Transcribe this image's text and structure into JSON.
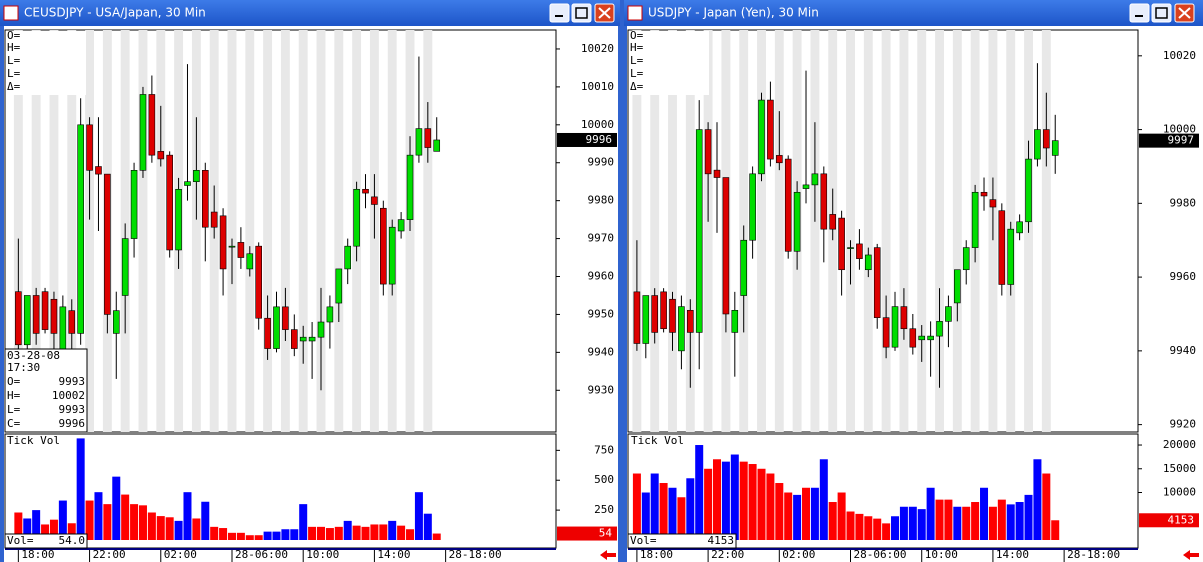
{
  "windows": [
    {
      "title": "CEUSDJPY - USA/Japan, 30 Min",
      "ohlc_labels": [
        "O=",
        "H=",
        "L=",
        "L=",
        "Δ="
      ],
      "cursor": {
        "date": "03-28-08",
        "time": "17:30",
        "labels": [
          "O=",
          "H=",
          "L=",
          "C="
        ],
        "values": [
          9993,
          10002,
          9993,
          9996
        ]
      },
      "volume_title": "Tick Vol",
      "volume_readout": {
        "label": "Vol=",
        "value": "54.0"
      }
    },
    {
      "title": "USDJPY - Japan (Yen), 30 Min",
      "ohlc_labels": [
        "O=",
        "H=",
        "L=",
        "L=",
        "Δ="
      ],
      "volume_title": "Tick Vol",
      "volume_readout": {
        "label": "Vol=",
        "value": 4153
      }
    }
  ],
  "chart_data": [
    {
      "type": "candlestick",
      "up_color": "#00dd00",
      "down_color": "#dd0000",
      "open": [
        9956,
        9942,
        9955,
        9956,
        9954,
        9940,
        9951,
        9945,
        10000,
        9989,
        9987,
        9945,
        9955,
        9970,
        9988,
        10008,
        9993,
        9992,
        9967,
        9984,
        9985,
        9988,
        9977,
        9976,
        9968,
        9969,
        9962,
        9968,
        9949,
        9941,
        9952,
        9946,
        9943,
        9943,
        9944,
        9948,
        9953,
        9962,
        9968,
        9983,
        9981,
        9978,
        9958,
        9972,
        9975,
        9992,
        9999,
        9993
      ],
      "high": [
        9970,
        9955,
        9957,
        9957,
        9956,
        9955,
        9954,
        10007,
        10002,
        10002,
        9987,
        9956,
        9974,
        9990,
        10010,
        10013,
        10005,
        9993,
        9986,
        10016,
        10002,
        9990,
        9984,
        9978,
        9970,
        9973,
        9968,
        9969,
        9955,
        9956,
        9957,
        9950,
        9947,
        9948,
        9957,
        9955,
        9962,
        9970,
        9985,
        9987,
        9987,
        9980,
        9975,
        9977,
        9997,
        10018,
        10006,
        10002
      ],
      "low": [
        9940,
        9938,
        9942,
        9945,
        9940,
        9935,
        9940,
        9942,
        9975,
        9972,
        9945,
        9933,
        9945,
        9965,
        9986,
        9990,
        9989,
        9965,
        9962,
        9980,
        9975,
        9964,
        9970,
        9955,
        9958,
        9962,
        9960,
        9946,
        9938,
        9940,
        9943,
        9939,
        9937,
        9933,
        9930,
        9941,
        9948,
        9958,
        9964,
        9978,
        9970,
        9955,
        9955,
        9970,
        9972,
        9990,
        9990,
        9993
      ],
      "close": [
        9942,
        9955,
        9945,
        9946,
        9945,
        9952,
        9945,
        10000,
        9988,
        9987,
        9950,
        9951,
        9970,
        9988,
        10008,
        9992,
        9991,
        9967,
        9983,
        9985,
        9988,
        9973,
        9973,
        9962,
        9968,
        9965,
        9966,
        9949,
        9941,
        9952,
        9946,
        9941,
        9944,
        9944,
        9948,
        9952,
        9962,
        9968,
        9983,
        9982,
        9979,
        9958,
        9973,
        9975,
        9992,
        9999,
        9994,
        9996
      ],
      "last_value": 9996,
      "ylim": [
        9919,
        10025
      ],
      "yticks": [
        9930,
        9940,
        9950,
        9960,
        9970,
        9980,
        9990,
        10000,
        10010,
        10020
      ],
      "xlim": [
        -1.5,
        60.4
      ],
      "xticks": [
        {
          "value": 0,
          "label": "18:00"
        },
        {
          "value": 8,
          "label": "22:00"
        },
        {
          "value": 16,
          "label": "02:00"
        },
        {
          "value": 24,
          "label": "28-06:00"
        },
        {
          "value": 32,
          "label": "10:00"
        },
        {
          "value": 40,
          "label": "14:00"
        },
        {
          "value": 48,
          "label": "28-18:00"
        }
      ]
    },
    {
      "type": "bar",
      "values": [
        230,
        180,
        250,
        130,
        170,
        330,
        140,
        850,
        330,
        400,
        300,
        530,
        380,
        300,
        290,
        230,
        200,
        190,
        160,
        400,
        180,
        320,
        110,
        100,
        60,
        60,
        40,
        40,
        70,
        70,
        90,
        90,
        300,
        110,
        110,
        100,
        110,
        160,
        120,
        110,
        130,
        130,
        160,
        120,
        90,
        400,
        220,
        54
      ],
      "colors": [
        "#ff0000",
        "#0000ff",
        "#0000ff",
        "#ff0000",
        "#ff0000",
        "#0000ff",
        "#ff0000",
        "#0000ff",
        "#ff0000",
        "#0000ff",
        "#ff0000",
        "#0000ff",
        "#ff0000",
        "#ff0000",
        "#ff0000",
        "#ff0000",
        "#ff0000",
        "#ff0000",
        "#0000ff",
        "#0000ff",
        "#ff0000",
        "#0000ff",
        "#ff0000",
        "#ff0000",
        "#ff0000",
        "#ff0000",
        "#ff0000",
        "#ff0000",
        "#0000ff",
        "#0000ff",
        "#0000ff",
        "#0000ff",
        "#0000ff",
        "#ff0000",
        "#ff0000",
        "#ff0000",
        "#ff0000",
        "#0000ff",
        "#ff0000",
        "#ff0000",
        "#ff0000",
        "#ff0000",
        "#0000ff",
        "#ff0000",
        "#ff0000",
        "#0000ff",
        "#0000ff",
        "#ff0000"
      ],
      "last_value": 54,
      "ylim": [
        0,
        870
      ],
      "yticks": [
        250,
        500,
        750
      ],
      "xlim": [
        -1.5,
        60.4
      ]
    },
    {
      "type": "candlestick",
      "up_color": "#00dd00",
      "down_color": "#dd0000",
      "open": [
        9956,
        9942,
        9955,
        9956,
        9954,
        9940,
        9951,
        9945,
        10000,
        9989,
        9987,
        9945,
        9955,
        9970,
        9988,
        10008,
        9993,
        9992,
        9967,
        9984,
        9985,
        9988,
        9977,
        9976,
        9968,
        9969,
        9962,
        9968,
        9949,
        9941,
        9952,
        9946,
        9943,
        9943,
        9944,
        9948,
        9953,
        9962,
        9968,
        9983,
        9981,
        9978,
        9958,
        9972,
        9975,
        9992,
        10000,
        9993
      ],
      "high": [
        9970,
        9955,
        9957,
        9957,
        9956,
        9955,
        9954,
        10008,
        10002,
        10002,
        9987,
        9956,
        9974,
        9990,
        10010,
        10013,
        10005,
        9993,
        9986,
        10016,
        10002,
        9990,
        9984,
        9978,
        9970,
        9973,
        9968,
        9969,
        9955,
        9956,
        9957,
        9950,
        9947,
        9948,
        9957,
        9955,
        9962,
        9970,
        9985,
        9987,
        9987,
        9980,
        9975,
        9977,
        9997,
        10018,
        10010,
        10004
      ],
      "low": [
        9940,
        9938,
        9942,
        9945,
        9940,
        9935,
        9930,
        9935,
        9975,
        9972,
        9945,
        9933,
        9945,
        9965,
        9986,
        9990,
        9989,
        9965,
        9962,
        9980,
        9975,
        9964,
        9970,
        9955,
        9958,
        9962,
        9960,
        9946,
        9938,
        9940,
        9943,
        9939,
        9937,
        9933,
        9930,
        9941,
        9948,
        9958,
        9964,
        9978,
        9970,
        9955,
        9955,
        9970,
        9972,
        9990,
        9990,
        9988
      ],
      "close": [
        9942,
        9955,
        9945,
        9946,
        9945,
        9952,
        9945,
        10000,
        9988,
        9987,
        9950,
        9951,
        9970,
        9988,
        10008,
        9992,
        9991,
        9967,
        9983,
        9985,
        9988,
        9973,
        9973,
        9962,
        9968,
        9965,
        9966,
        9949,
        9941,
        9952,
        9946,
        9941,
        9944,
        9944,
        9948,
        9952,
        9962,
        9968,
        9983,
        9982,
        9979,
        9958,
        9973,
        9975,
        9992,
        10000,
        9995,
        9997
      ],
      "last_value": 9997,
      "ylim": [
        9918,
        10027
      ],
      "yticks": [
        9920,
        9940,
        9960,
        9980,
        10000,
        10020
      ],
      "xlim": [
        -1,
        56.3
      ],
      "xticks": [
        {
          "value": 0,
          "label": "18:00"
        },
        {
          "value": 8,
          "label": "22:00"
        },
        {
          "value": 16,
          "label": "02:00"
        },
        {
          "value": 24,
          "label": "28-06:00"
        },
        {
          "value": 32,
          "label": "10:00"
        },
        {
          "value": 40,
          "label": "14:00"
        },
        {
          "value": 48,
          "label": "28-18:00"
        }
      ]
    },
    {
      "type": "bar",
      "values": [
        14000,
        10000,
        14000,
        12000,
        11000,
        9000,
        13000,
        20000,
        15000,
        17000,
        16500,
        18000,
        16500,
        16000,
        15000,
        14000,
        12000,
        10000,
        9500,
        11000,
        11000,
        17000,
        8000,
        10000,
        6000,
        5500,
        5000,
        4500,
        3500,
        5000,
        7000,
        7000,
        6500,
        11000,
        8500,
        8500,
        7000,
        7000,
        8000,
        11000,
        7000,
        8500,
        7500,
        8000,
        9500,
        17000,
        14000,
        4153
      ],
      "colors": [
        "#ff0000",
        "#0000ff",
        "#0000ff",
        "#ff0000",
        "#0000ff",
        "#ff0000",
        "#0000ff",
        "#0000ff",
        "#ff0000",
        "#ff0000",
        "#0000ff",
        "#0000ff",
        "#ff0000",
        "#ff0000",
        "#ff0000",
        "#ff0000",
        "#ff0000",
        "#ff0000",
        "#0000ff",
        "#ff0000",
        "#0000ff",
        "#0000ff",
        "#ff0000",
        "#ff0000",
        "#ff0000",
        "#ff0000",
        "#ff0000",
        "#ff0000",
        "#ff0000",
        "#0000ff",
        "#0000ff",
        "#0000ff",
        "#0000ff",
        "#0000ff",
        "#ff0000",
        "#ff0000",
        "#0000ff",
        "#ff0000",
        "#ff0000",
        "#0000ff",
        "#ff0000",
        "#ff0000",
        "#0000ff",
        "#0000ff",
        "#0000ff",
        "#0000ff",
        "#ff0000",
        "#ff0000"
      ],
      "last_value": 4153,
      "ylim": [
        0,
        21900
      ],
      "yticks": [
        10000,
        15000,
        20000
      ],
      "xlim": [
        -1,
        56.3
      ]
    }
  ]
}
